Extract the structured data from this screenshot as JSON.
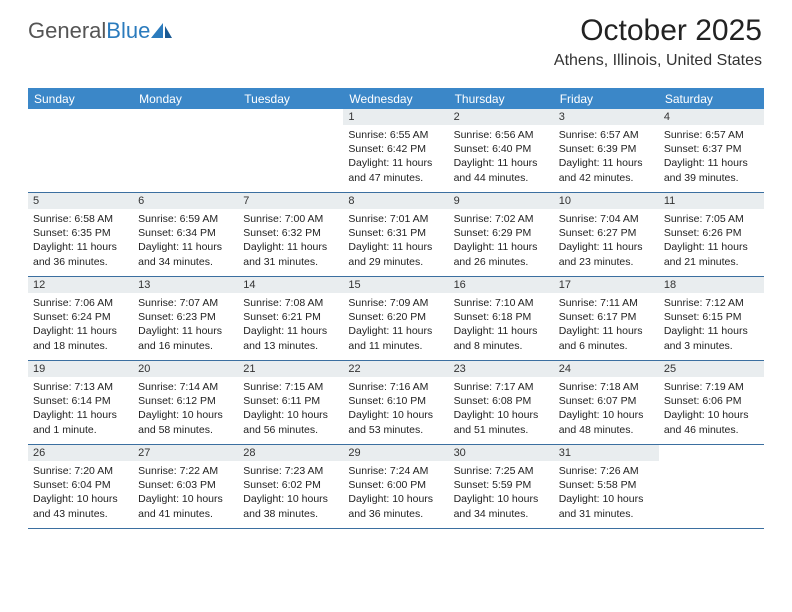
{
  "logo": {
    "text1": "General",
    "text2": "Blue"
  },
  "title": "October 2025",
  "location": "Athens, Illinois, United States",
  "colors": {
    "header_bg": "#3b87c8",
    "header_text": "#ffffff",
    "daynum_bg": "#e9edef",
    "rule": "#3b6fa0",
    "logo_gray": "#555555",
    "logo_blue": "#2b7bbd"
  },
  "day_headers": [
    "Sunday",
    "Monday",
    "Tuesday",
    "Wednesday",
    "Thursday",
    "Friday",
    "Saturday"
  ],
  "weeks": [
    [
      null,
      null,
      null,
      {
        "n": "1",
        "sr": "6:55 AM",
        "ss": "6:42 PM",
        "dl": "11 hours and 47 minutes."
      },
      {
        "n": "2",
        "sr": "6:56 AM",
        "ss": "6:40 PM",
        "dl": "11 hours and 44 minutes."
      },
      {
        "n": "3",
        "sr": "6:57 AM",
        "ss": "6:39 PM",
        "dl": "11 hours and 42 minutes."
      },
      {
        "n": "4",
        "sr": "6:57 AM",
        "ss": "6:37 PM",
        "dl": "11 hours and 39 minutes."
      }
    ],
    [
      {
        "n": "5",
        "sr": "6:58 AM",
        "ss": "6:35 PM",
        "dl": "11 hours and 36 minutes."
      },
      {
        "n": "6",
        "sr": "6:59 AM",
        "ss": "6:34 PM",
        "dl": "11 hours and 34 minutes."
      },
      {
        "n": "7",
        "sr": "7:00 AM",
        "ss": "6:32 PM",
        "dl": "11 hours and 31 minutes."
      },
      {
        "n": "8",
        "sr": "7:01 AM",
        "ss": "6:31 PM",
        "dl": "11 hours and 29 minutes."
      },
      {
        "n": "9",
        "sr": "7:02 AM",
        "ss": "6:29 PM",
        "dl": "11 hours and 26 minutes."
      },
      {
        "n": "10",
        "sr": "7:04 AM",
        "ss": "6:27 PM",
        "dl": "11 hours and 23 minutes."
      },
      {
        "n": "11",
        "sr": "7:05 AM",
        "ss": "6:26 PM",
        "dl": "11 hours and 21 minutes."
      }
    ],
    [
      {
        "n": "12",
        "sr": "7:06 AM",
        "ss": "6:24 PM",
        "dl": "11 hours and 18 minutes."
      },
      {
        "n": "13",
        "sr": "7:07 AM",
        "ss": "6:23 PM",
        "dl": "11 hours and 16 minutes."
      },
      {
        "n": "14",
        "sr": "7:08 AM",
        "ss": "6:21 PM",
        "dl": "11 hours and 13 minutes."
      },
      {
        "n": "15",
        "sr": "7:09 AM",
        "ss": "6:20 PM",
        "dl": "11 hours and 11 minutes."
      },
      {
        "n": "16",
        "sr": "7:10 AM",
        "ss": "6:18 PM",
        "dl": "11 hours and 8 minutes."
      },
      {
        "n": "17",
        "sr": "7:11 AM",
        "ss": "6:17 PM",
        "dl": "11 hours and 6 minutes."
      },
      {
        "n": "18",
        "sr": "7:12 AM",
        "ss": "6:15 PM",
        "dl": "11 hours and 3 minutes."
      }
    ],
    [
      {
        "n": "19",
        "sr": "7:13 AM",
        "ss": "6:14 PM",
        "dl": "11 hours and 1 minute."
      },
      {
        "n": "20",
        "sr": "7:14 AM",
        "ss": "6:12 PM",
        "dl": "10 hours and 58 minutes."
      },
      {
        "n": "21",
        "sr": "7:15 AM",
        "ss": "6:11 PM",
        "dl": "10 hours and 56 minutes."
      },
      {
        "n": "22",
        "sr": "7:16 AM",
        "ss": "6:10 PM",
        "dl": "10 hours and 53 minutes."
      },
      {
        "n": "23",
        "sr": "7:17 AM",
        "ss": "6:08 PM",
        "dl": "10 hours and 51 minutes."
      },
      {
        "n": "24",
        "sr": "7:18 AM",
        "ss": "6:07 PM",
        "dl": "10 hours and 48 minutes."
      },
      {
        "n": "25",
        "sr": "7:19 AM",
        "ss": "6:06 PM",
        "dl": "10 hours and 46 minutes."
      }
    ],
    [
      {
        "n": "26",
        "sr": "7:20 AM",
        "ss": "6:04 PM",
        "dl": "10 hours and 43 minutes."
      },
      {
        "n": "27",
        "sr": "7:22 AM",
        "ss": "6:03 PM",
        "dl": "10 hours and 41 minutes."
      },
      {
        "n": "28",
        "sr": "7:23 AM",
        "ss": "6:02 PM",
        "dl": "10 hours and 38 minutes."
      },
      {
        "n": "29",
        "sr": "7:24 AM",
        "ss": "6:00 PM",
        "dl": "10 hours and 36 minutes."
      },
      {
        "n": "30",
        "sr": "7:25 AM",
        "ss": "5:59 PM",
        "dl": "10 hours and 34 minutes."
      },
      {
        "n": "31",
        "sr": "7:26 AM",
        "ss": "5:58 PM",
        "dl": "10 hours and 31 minutes."
      },
      null
    ]
  ],
  "labels": {
    "sunrise": "Sunrise:",
    "sunset": "Sunset:",
    "daylight": "Daylight:"
  }
}
